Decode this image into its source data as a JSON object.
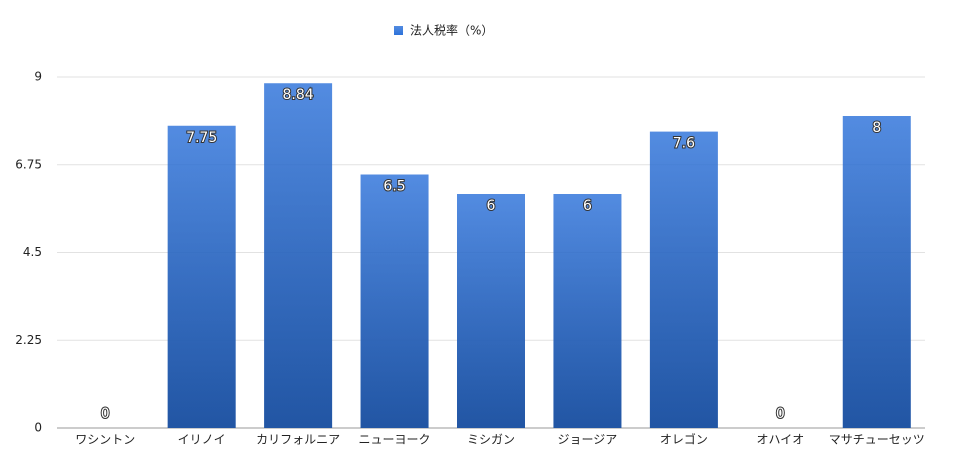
{
  "chart_data": {
    "type": "bar",
    "categories": [
      "ワシントン",
      "イリノイ",
      "カリフォルニア",
      "ニューヨーク",
      "ミシガン",
      "ジョージア",
      "オレゴン",
      "オハイオ",
      "マサチューセッツ"
    ],
    "series": [
      {
        "name": "法人税率（%）",
        "color": "#2d72da",
        "values": [
          0,
          7.75,
          8.84,
          6.5,
          6,
          6,
          7.6,
          0,
          8
        ]
      }
    ],
    "ylim": [
      0,
      9
    ],
    "yticks": [
      0,
      2.25,
      4.5,
      6.75,
      9
    ],
    "grid": true,
    "legend": "top"
  }
}
